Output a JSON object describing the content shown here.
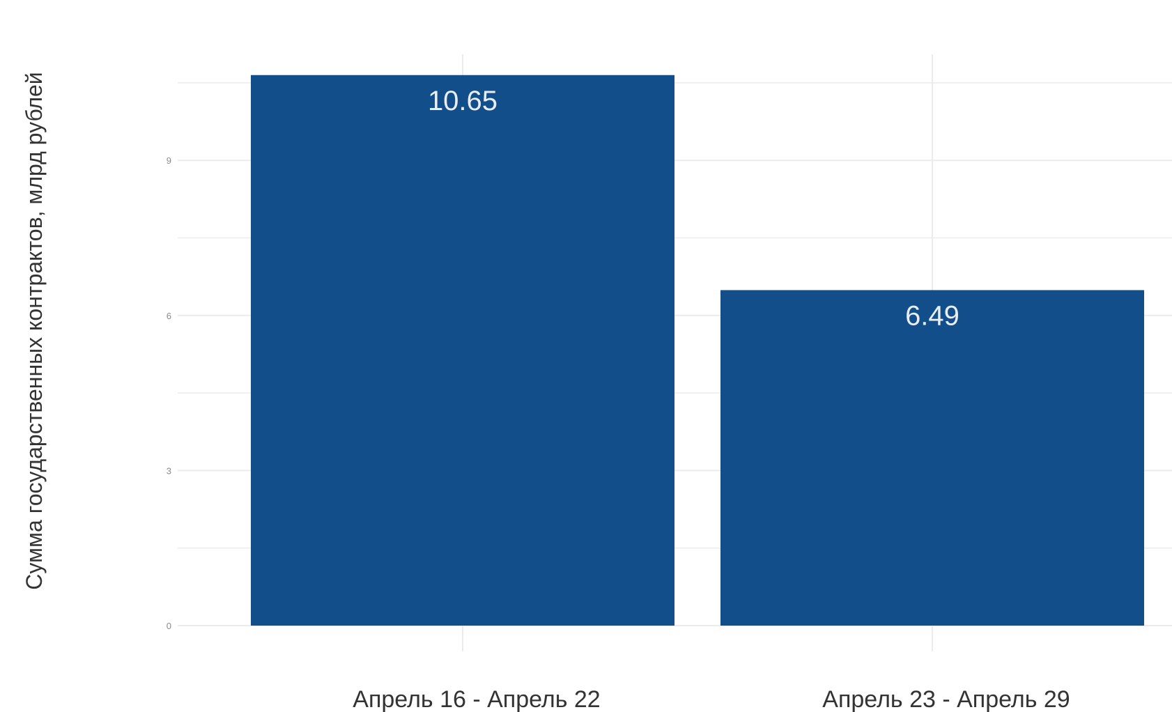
{
  "chart_data": {
    "type": "bar",
    "categories": [
      "Апрель 16 - Апрель 22",
      "Апрель 23 - Апрель 29"
    ],
    "values": [
      10.65,
      6.49
    ],
    "data_labels": [
      "10.65",
      "6.49"
    ],
    "title": "",
    "xlabel": "",
    "ylabel": "Сумма государственных контрактов, млрд рублей",
    "ylim": [
      0,
      11
    ],
    "yticks": [
      0,
      3,
      6,
      9
    ],
    "ytick_labels": [
      "0",
      "3",
      "6",
      "9"
    ],
    "grid": true,
    "bar_color": "#124e8a",
    "grid_color": "#ebebeb"
  }
}
